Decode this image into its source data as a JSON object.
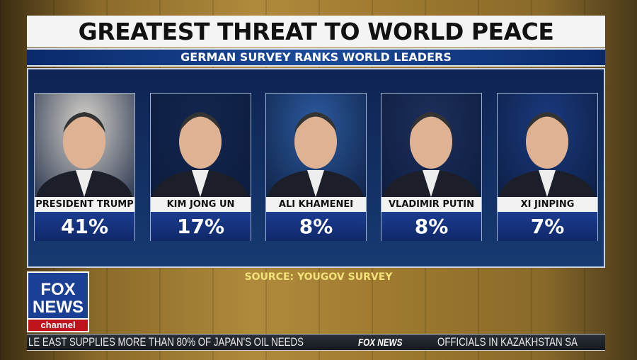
{
  "graphic": {
    "title": "GREATEST THREAT TO WORLD PEACE",
    "subtitle": "GERMAN SURVEY RANKS WORLD LEADERS",
    "leaders": [
      {
        "name": "PRESIDENT TRUMP",
        "percent": "41%",
        "bg": "#d8d4cc"
      },
      {
        "name": "KIM JONG UN",
        "percent": "17%",
        "bg": "#12264e"
      },
      {
        "name": "ALI KHAMENEI",
        "percent": "8%",
        "bg": "#2c5aa0"
      },
      {
        "name": "VLADIMIR PUTIN",
        "percent": "8%",
        "bg": "#1d2f5c"
      },
      {
        "name": "XI JINPING",
        "percent": "7%",
        "bg": "#1a3a80"
      }
    ],
    "source": "SOURCE: YOUGOV SURVEY"
  },
  "logo": {
    "line1": "FOX",
    "line2": "NEWS",
    "line3": "channel"
  },
  "ticker": {
    "left": "LE EAST SUPPLIES MORE THAN 80% OF JAPAN'S OIL NEEDS",
    "brand": "FOX NEWS",
    "right": "OFFICIALS IN KAZAKHSTAN SA"
  },
  "colors": {
    "title_bg": "#f4f4f4",
    "subtitle_bg": "#1b4a9a",
    "percent_bg": "#1c3c90",
    "source_text": "#f2e27a",
    "logo_red": "#c0141c"
  }
}
